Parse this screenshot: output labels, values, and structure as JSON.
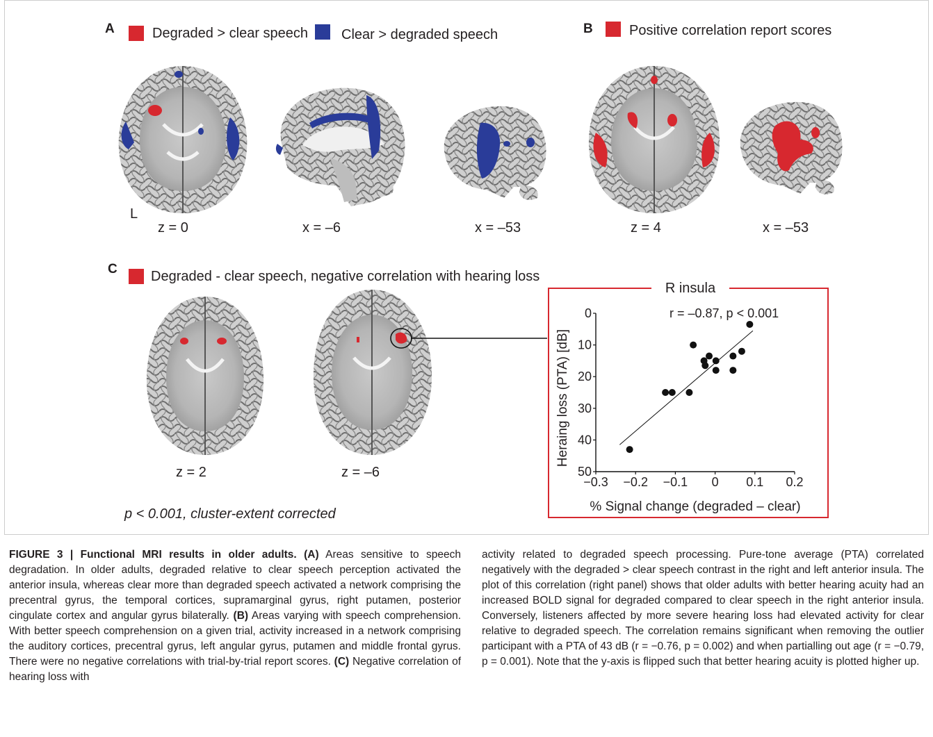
{
  "panels": {
    "a": {
      "label": "A",
      "legend": [
        {
          "text": "Degraded > clear speech",
          "color": "#d7282f"
        },
        {
          "text": "Clear > degraded speech",
          "color": "#2a3c99"
        }
      ],
      "side_label": "L",
      "coords": [
        "z = 0",
        "x = –6",
        "x = –53"
      ]
    },
    "b": {
      "label": "B",
      "legend": [
        {
          "text": "Positive correlation report scores",
          "color": "#d7282f"
        }
      ],
      "coords": [
        "z = 4",
        "x = –53"
      ]
    },
    "c": {
      "label": "C",
      "legend": [
        {
          "text": "Degraded - clear speech, negative correlation with hearing loss",
          "color": "#d7282f"
        }
      ],
      "coords": [
        "z = 2",
        "z = –6"
      ],
      "threshold": "p < 0.001, cluster-extent corrected"
    }
  },
  "colors": {
    "activation_red": "#d7282f",
    "activation_blue": "#2a3c99",
    "box_red": "#d7282f"
  },
  "chart_data": {
    "type": "scatter",
    "title": "R insula",
    "annotation": "r = –0.87, p < 0.001",
    "xlabel": "% Signal change (degraded – clear)",
    "ylabel": "Heraing loss (PTA) [dB]",
    "xlim": [
      -0.3,
      0.2
    ],
    "ylim": [
      0,
      50
    ],
    "y_inverted": true,
    "xticks": [
      -0.3,
      -0.2,
      -0.1,
      0,
      0.1,
      0.2
    ],
    "xtick_labels": [
      "−0.3",
      "−0.2",
      "−0.1",
      "0",
      "0.1",
      "0.2"
    ],
    "yticks": [
      0,
      10,
      20,
      30,
      40,
      50
    ],
    "points": [
      {
        "x": -0.215,
        "y": 43
      },
      {
        "x": -0.125,
        "y": 25
      },
      {
        "x": -0.108,
        "y": 25
      },
      {
        "x": -0.065,
        "y": 25
      },
      {
        "x": -0.055,
        "y": 10
      },
      {
        "x": -0.028,
        "y": 15
      },
      {
        "x": -0.025,
        "y": 16.5
      },
      {
        "x": -0.015,
        "y": 13.5
      },
      {
        "x": 0.002,
        "y": 15
      },
      {
        "x": 0.002,
        "y": 18
      },
      {
        "x": 0.045,
        "y": 18
      },
      {
        "x": 0.045,
        "y": 13.5
      },
      {
        "x": 0.067,
        "y": 12
      },
      {
        "x": 0.087,
        "y": 3.5
      }
    ],
    "fit_line": {
      "x": [
        -0.24,
        0.095
      ],
      "y": [
        41.5,
        5.5
      ]
    },
    "grid": false
  },
  "caption": {
    "heading": "FIGURE 3 | Functional MRI results in older adults.",
    "p1": [
      {
        "b": "(A)",
        "t": " Areas sensitive to speech degradation. In older adults, degraded relative to clear speech perception activated the anterior insula, whereas clear more than degraded speech activated a network comprising the precentral gyrus, the temporal cortices, supramarginal gyrus, right putamen, posterior cingulate cortex and angular gyrus bilaterally. "
      },
      {
        "b": "(B)",
        "t": " Areas varying with speech comprehension. With better speech comprehension on a given trial, activity increased in a network comprising the auditory cortices, precentral gyrus, left angular gyrus, putamen and middle frontal gyrus. There were no negative correlations with trial-by-trial report scores. "
      },
      {
        "b": "(C)",
        "t": " Negative correlation of hearing loss with"
      }
    ],
    "p2": "activity related to degraded speech processing. Pure-tone average (PTA) correlated negatively with the degraded > clear speech contrast in the right and left anterior insula. The plot of this correlation (right panel) shows that older adults with better hearing acuity had an increased BOLD signal for degraded compared to clear speech in the right anterior insula. Conversely, listeners affected by more severe hearing loss had elevated activity for clear relative to degraded speech. The correlation remains significant when removing the outlier participant with a PTA of 43 dB (r = −0.76, p = 0.002) and when partialling out age (r = −0.79, p = 0.001). Note that the y-axis is flipped such that better hearing acuity is plotted higher up."
  }
}
